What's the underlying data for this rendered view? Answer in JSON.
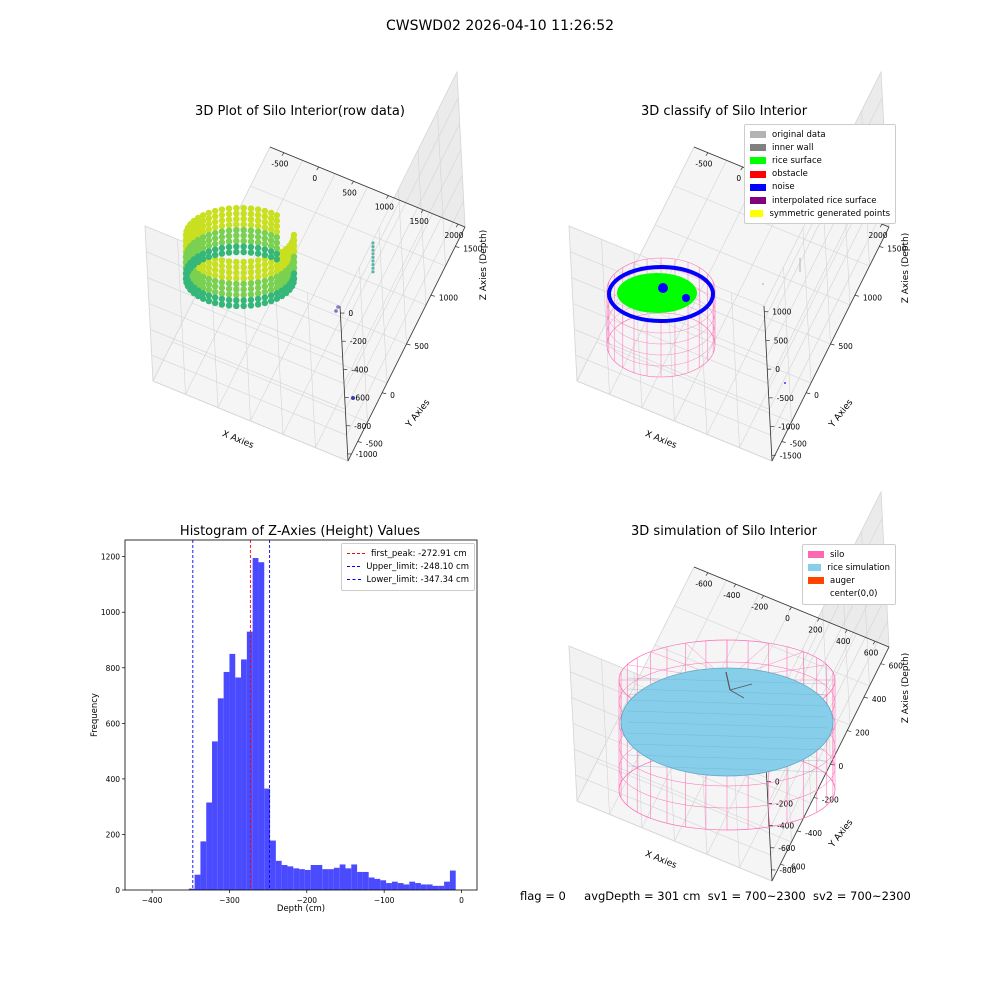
{
  "figure": {
    "suptitle": "CWSWD02 2026-04-10 11:26:52",
    "status": {
      "flag": "flag = 0",
      "avg_depth": "avgDepth = 301 cm",
      "sv1": "sv1 = 700~2300",
      "sv2": "sv2 = 700~2300"
    }
  },
  "colors": {
    "original_data": "#b3b3b3",
    "inner_wall": "#808080",
    "rice_surface": "#00ff00",
    "obstacle": "#ff0000",
    "noise": "#0000ff",
    "interpolated_rice_surface": "#800080",
    "symmetric_generated_points": "#ffff00",
    "silo": "#ff69b4",
    "rice_simulation": "#87ceeb",
    "auger": "#ff4500",
    "hist_bars": "#4a4aff"
  },
  "chart_data": [
    {
      "type": "scatter",
      "projection": "3d",
      "title": "3D Plot of Silo Interior(row data)",
      "xlabel": "X Axies",
      "ylabel": "Y Axies",
      "zlabel": "Z Axies (Depth)",
      "xticks": [
        "-500",
        "0",
        "500",
        "1000",
        "1500",
        "2000"
      ],
      "yticks": [
        "-500",
        "0",
        "500",
        "1000",
        "1500"
      ],
      "zticks": [
        "0",
        "-200",
        "-400",
        "-600",
        "-800",
        "-1000"
      ],
      "xlim": [
        -700,
        2100
      ],
      "ylim": [
        -700,
        1700
      ],
      "zlim": [
        -1050,
        50
      ],
      "colormap": "viridis",
      "clusters": [
        {
          "shape": "ring",
          "cx": -350,
          "cy": 150,
          "r": 330,
          "z": -280
        },
        {
          "shape": "line",
          "x": 1480,
          "y": 1350,
          "z_from": -280,
          "z_to": -500,
          "count": 9
        },
        {
          "shape": "points",
          "x": 820,
          "y": 900,
          "z": -820,
          "count": 2
        },
        {
          "shape": "points",
          "x": 1320,
          "y": 150,
          "z": -1000,
          "count": 1
        }
      ]
    },
    {
      "type": "scatter",
      "projection": "3d",
      "title": "3D classify of Silo Interior",
      "xlabel": "X Axies",
      "ylabel": "Y Axies",
      "zlabel": "Z Axies (Depth)",
      "xticks": [
        "-500",
        "0",
        "500",
        "1000",
        "1500",
        "2000"
      ],
      "yticks": [
        "-500",
        "0",
        "500",
        "1000",
        "1500"
      ],
      "zticks": [
        "1000",
        "500",
        "0",
        "-500",
        "-1000",
        "-1500"
      ],
      "xlim": [
        -700,
        2100
      ],
      "ylim": [
        -700,
        1700
      ],
      "zlim": [
        -1600,
        1100
      ],
      "legend": [
        "original data",
        "inner wall",
        "rice surface",
        "obstacle",
        "noise",
        "interpolated rice surface",
        "symmetric generated points"
      ],
      "legend_loc": "upper right"
    },
    {
      "type": "bar",
      "title": "Histogram of Z-Axies (Height) Values",
      "xlabel": "Depth (cm)",
      "ylabel": "Frequency",
      "xlim": [
        -435,
        20
      ],
      "ylim": [
        0,
        1260
      ],
      "xticks": [
        -400,
        -300,
        -200,
        -100,
        0
      ],
      "yticks": [
        0,
        200,
        400,
        600,
        800,
        1000,
        1200
      ],
      "bin_width": 7.5,
      "bins": [
        [
          -352.5,
          5
        ],
        [
          -345,
          55
        ],
        [
          -337.5,
          175
        ],
        [
          -330,
          315
        ],
        [
          -322.5,
          535
        ],
        [
          -315,
          690
        ],
        [
          -307.5,
          785
        ],
        [
          -300,
          850
        ],
        [
          -292.5,
          765
        ],
        [
          -285,
          830
        ],
        [
          -277.5,
          930
        ],
        [
          -270,
          1195
        ],
        [
          -262.5,
          1180
        ],
        [
          -255,
          365
        ],
        [
          -247.5,
          178
        ],
        [
          -240,
          105
        ],
        [
          -232.5,
          90
        ],
        [
          -225,
          85
        ],
        [
          -217.5,
          78
        ],
        [
          -210,
          75
        ],
        [
          -202.5,
          72
        ],
        [
          -195,
          90
        ],
        [
          -187.5,
          90
        ],
        [
          -180,
          75
        ],
        [
          -172.5,
          75
        ],
        [
          -165,
          80
        ],
        [
          -157.5,
          92
        ],
        [
          -150,
          78
        ],
        [
          -142.5,
          92
        ],
        [
          -135,
          65
        ],
        [
          -127.5,
          65
        ],
        [
          -120,
          45
        ],
        [
          -112.5,
          40
        ],
        [
          -105,
          35
        ],
        [
          -97.5,
          25
        ],
        [
          -90,
          30
        ],
        [
          -82.5,
          25
        ],
        [
          -75,
          20
        ],
        [
          -67.5,
          30
        ],
        [
          -60,
          25
        ],
        [
          -52.5,
          20
        ],
        [
          -45,
          20
        ],
        [
          -37.5,
          15
        ],
        [
          -30,
          15
        ],
        [
          -22.5,
          30
        ],
        [
          -15,
          70
        ]
      ],
      "lines": [
        {
          "label": "first_peak: -272.91 cm",
          "x": -272.91,
          "color": "#ff0000"
        },
        {
          "label": "Upper_limit: -248.10 cm",
          "x": -248.1,
          "color": "#0000ff"
        },
        {
          "label": "Lower_limit: -347.34 cm",
          "x": -347.34,
          "color": "#0000ff"
        }
      ],
      "legend_loc": "upper right"
    },
    {
      "type": "surface",
      "projection": "3d",
      "title": "3D simulation of Silo Interior",
      "xlabel": "X Axies",
      "ylabel": "Y Axies",
      "zlabel": "Z Axies (Depth)",
      "xticks": [
        "-600",
        "-400",
        "-200",
        "0",
        "200",
        "400",
        "600"
      ],
      "yticks": [
        "-600",
        "-400",
        "-200",
        "0",
        "200",
        "400",
        "600"
      ],
      "zticks": [
        "400",
        "200",
        "0",
        "-200",
        "-400",
        "-600",
        "-800"
      ],
      "xlim": [
        -700,
        700
      ],
      "ylim": [
        -700,
        700
      ],
      "zlim": [
        -900,
        500
      ],
      "legend": [
        "silo",
        "rice simulation",
        "auger",
        "center(0,0)"
      ],
      "legend_loc": "upper right"
    }
  ]
}
